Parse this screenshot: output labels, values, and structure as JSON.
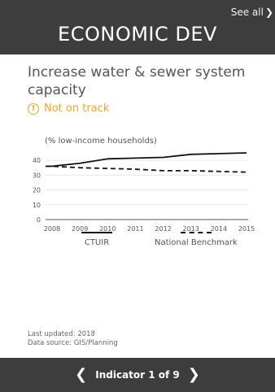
{
  "header": {
    "see_all_label": "See all",
    "see_all_icon": "chevron-right-icon",
    "section_title": "ECONOMIC DEV"
  },
  "indicator": {
    "title": "Increase water & sewer system capacity",
    "status_label": "Not on track",
    "status_icon": "warning-icon",
    "status_color": "#f5a623"
  },
  "chart_data": {
    "type": "line",
    "title": "",
    "ylabel": "(% low-income households)",
    "xlabel": "",
    "x": [
      "2008",
      "2009",
      "2010",
      "2011",
      "2012",
      "2013",
      "2014",
      "2015"
    ],
    "ylim": [
      0,
      45
    ],
    "yticks": [
      "0",
      "10",
      "20",
      "30",
      "40"
    ],
    "series": [
      {
        "name": "CTUIR",
        "style": "solid",
        "values": [
          36,
          38,
          41,
          41.5,
          42,
          44,
          44.5,
          45
        ]
      },
      {
        "name": "National Benchmark",
        "style": "dashed",
        "values": [
          36,
          35,
          34.5,
          34,
          33,
          33,
          32.5,
          32
        ]
      }
    ],
    "legend": "bottom",
    "grid": true
  },
  "meta": {
    "last_updated": "Last updated: 2018",
    "data_source": "Data source: GIS/Planning"
  },
  "pager": {
    "label": "Indicator 1 of 9",
    "prev_icon": "chevron-left-icon",
    "next_icon": "chevron-right-icon"
  }
}
